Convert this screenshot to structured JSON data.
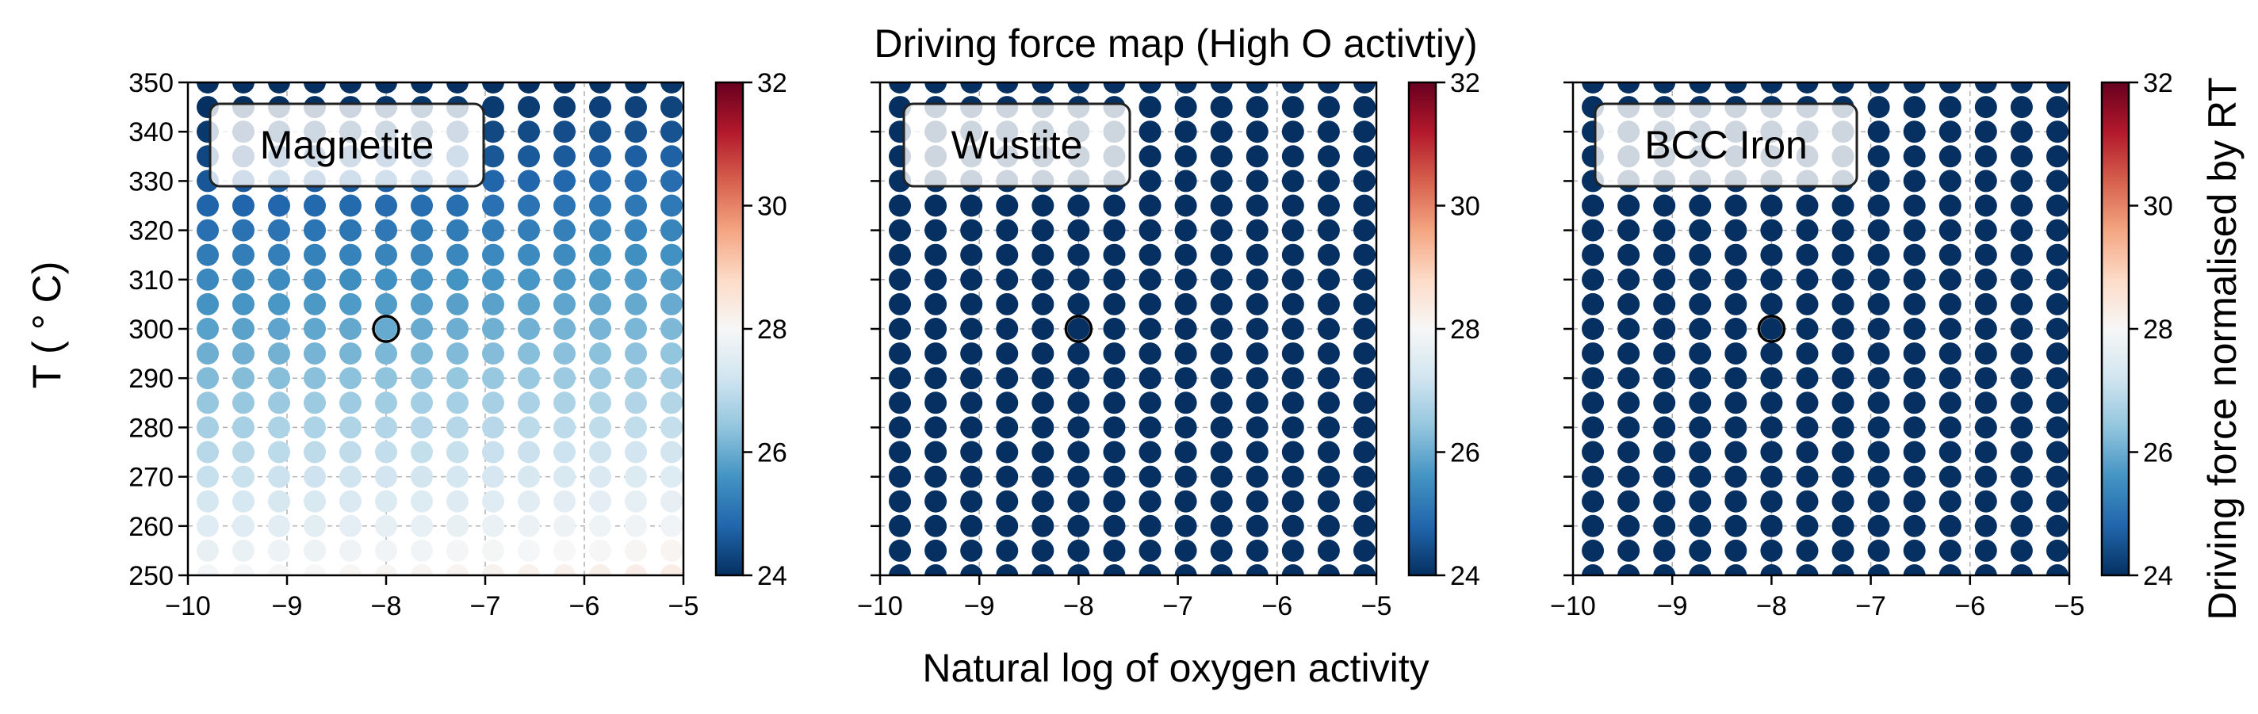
{
  "title": "Driving force map (High O activtiy)",
  "xlabel": "Natural log of oxygen activity",
  "ylabel": "T ( ° C)",
  "colorbar_label": "Driving force normalised by RT",
  "chart_data": [
    {
      "type": "scatter",
      "panel_label": "Magnetite",
      "x_ticks": [
        "−10",
        "−9",
        "−8",
        "−7",
        "−6",
        "−5"
      ],
      "y_ticks": [
        "250",
        "260",
        "270",
        "280",
        "290",
        "300",
        "310",
        "320",
        "330",
        "340",
        "350"
      ],
      "colorbar_ticks": [
        "24",
        "26",
        "28",
        "30",
        "32"
      ],
      "xlim": [
        -10,
        -5
      ],
      "ylim": [
        250,
        350
      ],
      "clim": [
        24,
        32
      ],
      "colormap": "RdBu_r",
      "grid": true,
      "x_grid": [
        -9.8,
        -9.44,
        -9.08,
        -8.72,
        -8.36,
        -8.0,
        -7.64,
        -7.28,
        -6.92,
        -6.56,
        -6.2,
        -5.84,
        -5.48,
        -5.12
      ],
      "y_grid": [
        250,
        255,
        260,
        265,
        270,
        275,
        280,
        285,
        290,
        295,
        300,
        305,
        310,
        315,
        320,
        325,
        330,
        335,
        340,
        345,
        350
      ],
      "value_model": "v = a + b*T + c*x",
      "a": 39.2,
      "b": -0.042,
      "c": 0.08,
      "marker": {
        "x": -8,
        "y": 300
      }
    },
    {
      "type": "scatter",
      "panel_label": "Wustite",
      "x_ticks": [
        "−10",
        "−9",
        "−8",
        "−7",
        "−6",
        "−5"
      ],
      "y_ticks": [
        "250",
        "260",
        "270",
        "280",
        "290",
        "300",
        "310",
        "320",
        "330",
        "340",
        "350"
      ],
      "colorbar_ticks": [
        "24",
        "26",
        "28",
        "30",
        "32"
      ],
      "xlim": [
        -10,
        -5
      ],
      "ylim": [
        250,
        350
      ],
      "clim": [
        24,
        32
      ],
      "colormap": "RdBu_r",
      "grid": true,
      "x_grid": [
        -9.8,
        -9.44,
        -9.08,
        -8.72,
        -8.36,
        -8.0,
        -7.64,
        -7.28,
        -6.92,
        -6.56,
        -6.2,
        -5.84,
        -5.48,
        -5.12
      ],
      "y_grid": [
        250,
        255,
        260,
        265,
        270,
        275,
        280,
        285,
        290,
        295,
        300,
        305,
        310,
        315,
        320,
        325,
        330,
        335,
        340,
        345,
        350
      ],
      "value_model": "v = a + b*T + c*x",
      "a": 18.7,
      "b": -0.056,
      "c": -1.65,
      "marker": {
        "x": -8,
        "y": 300
      }
    },
    {
      "type": "scatter",
      "panel_label": "BCC Iron",
      "x_ticks": [
        "−10",
        "−9",
        "−8",
        "−7",
        "−6",
        "−5"
      ],
      "y_ticks": [
        "250",
        "260",
        "270",
        "280",
        "290",
        "300",
        "310",
        "320",
        "330",
        "340",
        "350"
      ],
      "colorbar_ticks": [
        "24",
        "26",
        "28",
        "30",
        "32"
      ],
      "xlim": [
        -10,
        -5
      ],
      "ylim": [
        250,
        350
      ],
      "clim": [
        24,
        32
      ],
      "colormap": "RdBu_r",
      "grid": true,
      "x_grid": [
        -9.8,
        -9.44,
        -9.08,
        -8.72,
        -8.36,
        -8.0,
        -7.64,
        -7.28,
        -6.92,
        -6.56,
        -6.2,
        -5.84,
        -5.48,
        -5.12
      ],
      "y_grid": [
        250,
        255,
        260,
        265,
        270,
        275,
        280,
        285,
        290,
        295,
        300,
        305,
        310,
        315,
        320,
        325,
        330,
        335,
        340,
        345,
        350
      ],
      "value_model": "v = a + b*T + c*x",
      "a": 22.0,
      "b": 0,
      "c": 0,
      "marker": {
        "x": -8,
        "y": 300
      }
    }
  ]
}
